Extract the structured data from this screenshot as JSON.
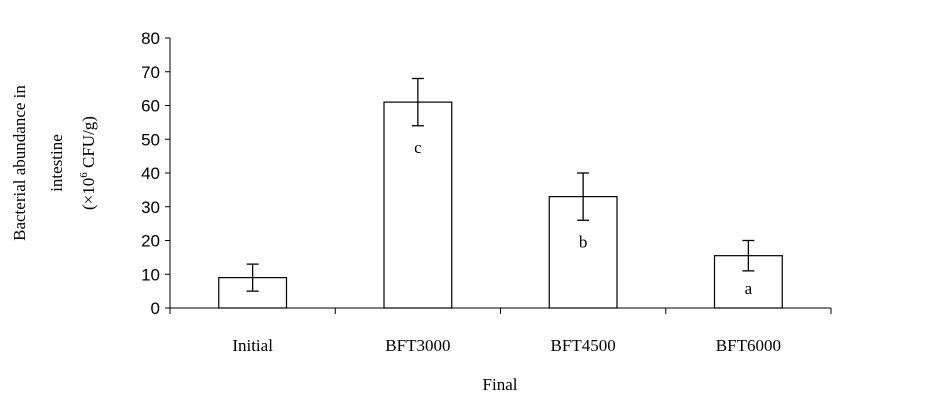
{
  "chart_data": {
    "type": "bar",
    "categories": [
      "Initial",
      "BFT3000",
      "BFT4500",
      "BFT6000"
    ],
    "values": [
      9,
      61,
      33,
      15.5
    ],
    "error": [
      4,
      7,
      7,
      4.5
    ],
    "significance_labels": [
      "",
      "c",
      "b",
      "a"
    ],
    "xlabel": "Final",
    "ylabel_lines": [
      "Bacterial abundance in",
      "intestine"
    ],
    "ylabel_unit": {
      "prefix": "(×10",
      "superscript": "6",
      "suffix": " CFU/g)"
    },
    "ylim": [
      0,
      80
    ],
    "yticks": [
      0,
      10,
      20,
      30,
      40,
      50,
      60,
      70,
      80
    ],
    "grid": false,
    "legend": "none",
    "bar_fill": "#ffffff",
    "bar_stroke": "#000000"
  }
}
